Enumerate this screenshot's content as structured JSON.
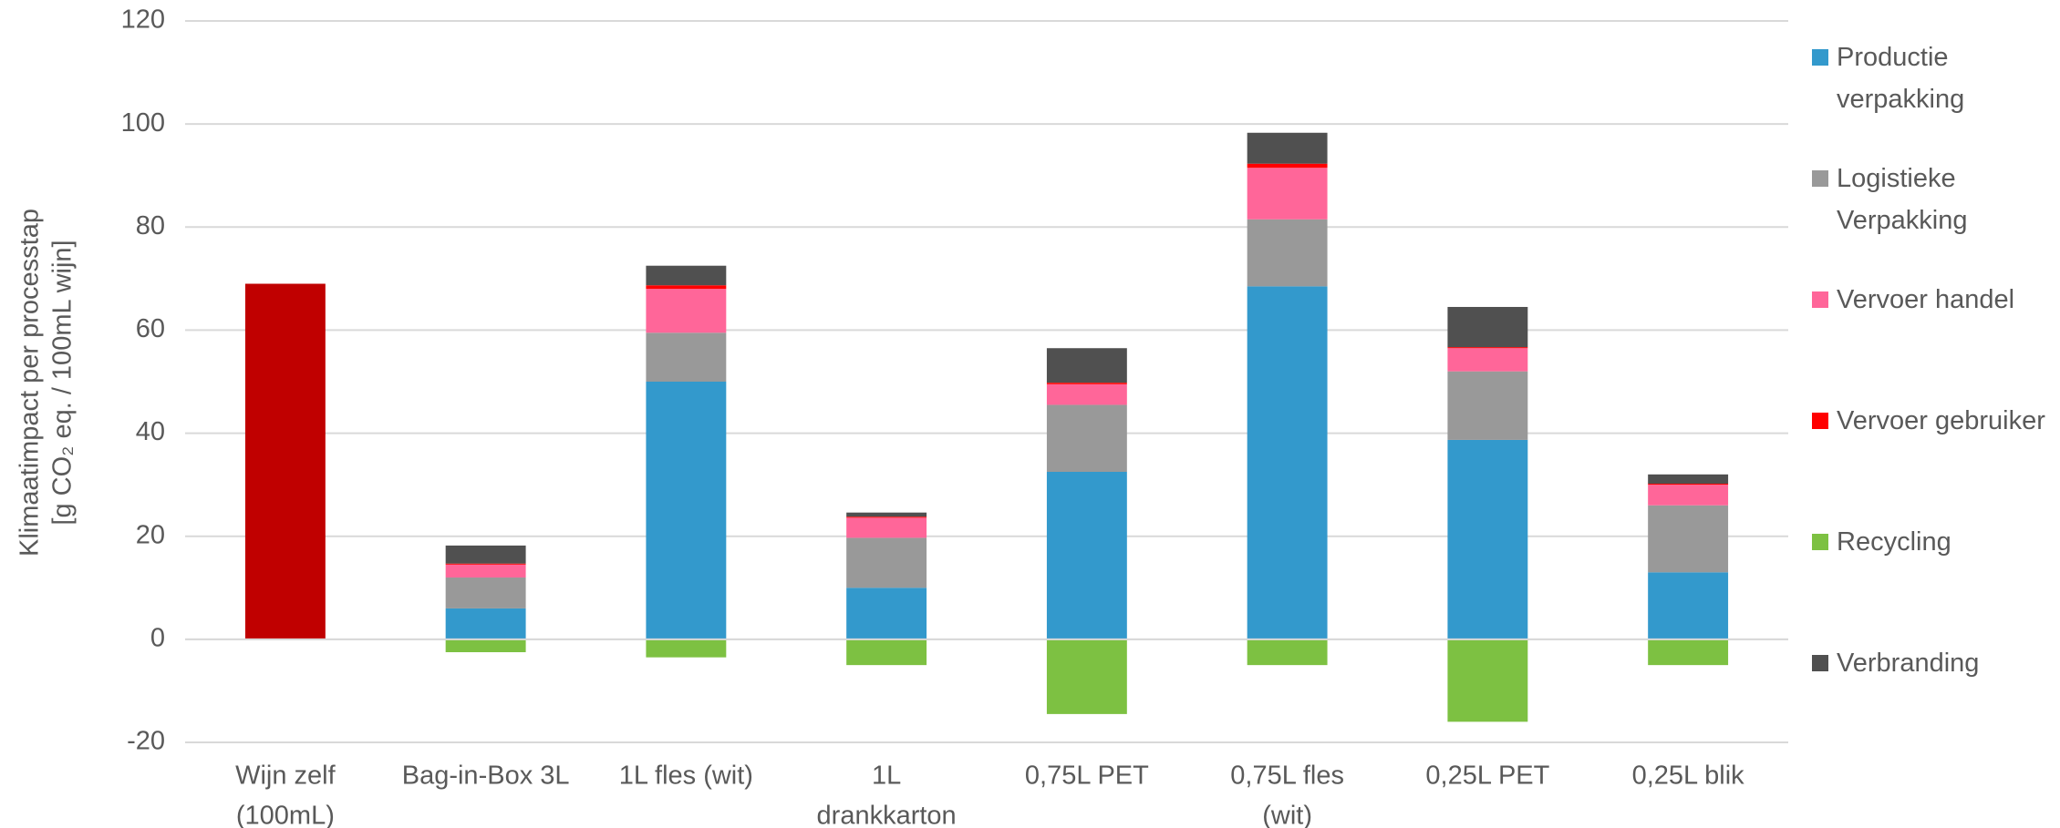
{
  "chart_data": {
    "type": "bar",
    "stacked": true,
    "ylabel": [
      "Klimaatimpact per processtap",
      "[g CO₂ eq. / 100mL wijn]"
    ],
    "categories": [
      [
        "Wijn zelf",
        "(100mL)"
      ],
      [
        "Bag-in-Box 3L"
      ],
      [
        "1L fles (wit)"
      ],
      [
        "1L",
        "drankkarton"
      ],
      [
        "0,75L PET"
      ],
      [
        "0,75L fles",
        "(wit)"
      ],
      [
        "0,25L PET"
      ],
      [
        "0,25L blik"
      ]
    ],
    "series": [
      {
        "color": "#c00000",
        "values": [
          69,
          null,
          null,
          null,
          null,
          null,
          null,
          null
        ]
      },
      {
        "name": "Productie verpakking",
        "color": "#3399cc",
        "values": [
          null,
          6,
          50,
          10,
          32.5,
          68.5,
          38.7,
          13
        ]
      },
      {
        "name": "Logistieke Verpakking",
        "color": "#999999",
        "values": [
          null,
          6,
          9.5,
          9.7,
          13,
          13,
          13.3,
          13
        ]
      },
      {
        "name": "Vervoer handel",
        "color": "#ff6699",
        "values": [
          null,
          2.5,
          8.5,
          3.9,
          4,
          10,
          4.5,
          4
        ]
      },
      {
        "name": "Vervoer gebruiker",
        "color": "#ff0000",
        "values": [
          null,
          0.2,
          0.7,
          0.2,
          0.3,
          0.8,
          0.2,
          0.2
        ]
      },
      {
        "name": "Recycling",
        "color": "#7dc142",
        "values": [
          null,
          -2.5,
          -3.5,
          -5,
          -14.5,
          -5,
          -16,
          -5
        ]
      },
      {
        "name": "Verbranding",
        "color": "#505050",
        "values": [
          null,
          3.5,
          3.8,
          0.8,
          6.7,
          6,
          7.8,
          1.8
        ]
      }
    ],
    "ylim": [
      -20,
      120
    ],
    "yticks": [
      -20,
      0,
      20,
      40,
      60,
      80,
      100,
      120
    ],
    "grid": true,
    "legend": "right"
  }
}
